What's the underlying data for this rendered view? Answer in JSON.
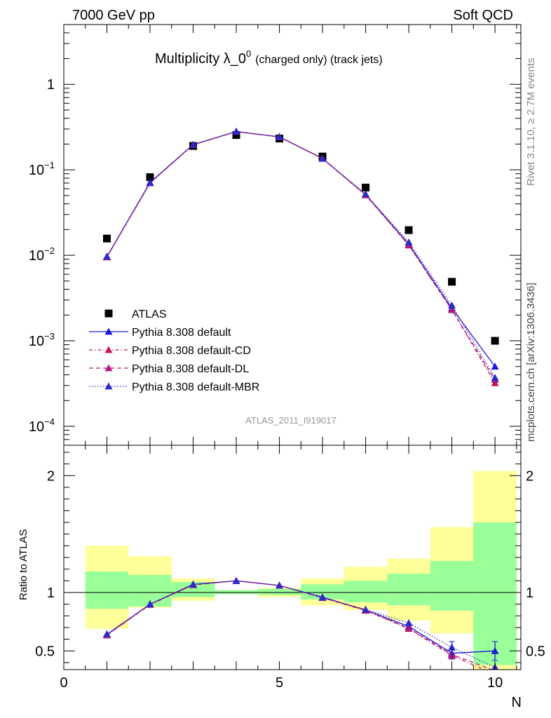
{
  "header": {
    "left": "7000 GeV pp",
    "right": "Soft QCD"
  },
  "chart_data": [
    {
      "type": "line",
      "title_main": "Multiplicity λ_0",
      "title_sup": "0",
      "title_tail": "(charged only) (track jets)",
      "watermark": "ATLAS_2011_I919017",
      "xlabel": "N",
      "ylabel": "",
      "yscale": "log",
      "ylim": [
        6e-05,
        5
      ],
      "y_tick_labels": [
        {
          "base": "10",
          "exp": "−4"
        },
        {
          "base": "10",
          "exp": "−3"
        },
        {
          "base": "10",
          "exp": "−2"
        },
        {
          "base": "10",
          "exp": "−1"
        },
        {
          "base": "1",
          "exp": ""
        }
      ],
      "x": [
        1,
        2,
        3,
        4,
        5,
        6,
        7,
        8,
        9,
        10
      ],
      "series": [
        {
          "name": "ATLAS",
          "marker": "square",
          "color": "#000000",
          "dash": "",
          "values": [
            0.0157,
            0.082,
            0.19,
            0.255,
            0.232,
            0.143,
            0.062,
            0.0197,
            0.0049,
            0.001
          ]
        },
        {
          "name": "Pythia 8.308 default",
          "marker": "triangle",
          "color": "#1a1adb",
          "dash": "",
          "values": [
            0.0096,
            0.071,
            0.197,
            0.28,
            0.243,
            0.136,
            0.0512,
            0.0135,
            0.0024,
            0.0005
          ]
        },
        {
          "name": "Pythia 8.308 default-CD",
          "marker": "triangle",
          "color": "#c8194f",
          "dash": "5,3,1.5,3",
          "values": [
            0.0095,
            0.07,
            0.196,
            0.279,
            0.242,
            0.135,
            0.0505,
            0.0131,
            0.0023,
            0.00032
          ]
        },
        {
          "name": "Pythia 8.308 default-DL",
          "marker": "triangle",
          "color": "#b0187e",
          "dash": "6,4",
          "values": [
            0.0096,
            0.07,
            0.197,
            0.28,
            0.242,
            0.136,
            0.051,
            0.0132,
            0.0023,
            0.00035
          ]
        },
        {
          "name": "Pythia 8.308 default-MBR",
          "marker": "triangle",
          "color": "#2c2ac8",
          "dash": "1.5,2.5",
          "values": [
            0.0097,
            0.0705,
            0.197,
            0.28,
            0.243,
            0.135,
            0.052,
            0.0142,
            0.0026,
            0.00037
          ]
        }
      ]
    },
    {
      "type": "line",
      "xlabel": "N",
      "ylabel": "Ratio to ATLAS",
      "xlim": [
        0,
        10.6
      ],
      "ylim": [
        0.34,
        2.26
      ],
      "x_ticks": [
        0,
        5,
        10
      ],
      "y_ticks": [
        0.5,
        1,
        2
      ],
      "x": [
        1,
        2,
        3,
        4,
        5,
        6,
        7,
        8,
        9,
        10
      ],
      "bands": {
        "bins": [
          [
            0.5,
            1.5
          ],
          [
            1.5,
            2.5
          ],
          [
            2.5,
            3.5
          ],
          [
            3.5,
            4.5
          ],
          [
            4.5,
            5.5
          ],
          [
            5.5,
            6.5
          ],
          [
            6.5,
            7.5
          ],
          [
            7.5,
            8.5
          ],
          [
            8.5,
            9.5
          ],
          [
            9.5,
            10.5
          ]
        ],
        "stat_lo": [
          0.86,
          0.88,
          0.96,
          0.985,
          0.98,
          0.94,
          0.915,
          0.89,
          0.845,
          0.38
        ],
        "stat_hi": [
          1.18,
          1.15,
          1.09,
          1.02,
          1.03,
          1.07,
          1.1,
          1.16,
          1.27,
          1.6
        ],
        "tot_lo": [
          0.69,
          0.87,
          0.93,
          0.985,
          0.96,
          0.89,
          0.85,
          0.76,
          0.65,
          0.34
        ],
        "tot_hi": [
          1.4,
          1.31,
          1.12,
          1.02,
          1.04,
          1.12,
          1.22,
          1.29,
          1.56,
          2.04
        ],
        "stat_color": "#99ff99",
        "tot_color": "#ffff99"
      },
      "series": [
        {
          "name": "Pythia 8.308 default",
          "color": "#1a1adb",
          "dash": "",
          "values": [
            0.64,
            0.9,
            1.07,
            1.1,
            1.06,
            0.96,
            0.85,
            0.71,
            0.48,
            0.5
          ]
        },
        {
          "name": "Pythia 8.308 default-CD",
          "color": "#c8194f",
          "dash": "5,3,1.5,3",
          "values": [
            0.635,
            0.895,
            1.065,
            1.1,
            1.06,
            0.955,
            0.845,
            0.69,
            0.46,
            0.3
          ]
        },
        {
          "name": "Pythia 8.308 default-DL",
          "color": "#b0187e",
          "dash": "6,4",
          "values": [
            0.635,
            0.9,
            1.065,
            1.1,
            1.06,
            0.955,
            0.85,
            0.695,
            0.47,
            0.33
          ]
        },
        {
          "name": "Pythia 8.308 default-MBR",
          "color": "#2c2ac8",
          "dash": "1.5,2.5",
          "values": [
            0.645,
            0.9,
            1.07,
            1.1,
            1.06,
            0.955,
            0.855,
            0.74,
            0.53,
            0.36
          ]
        }
      ]
    }
  ],
  "side_labels": {
    "rivet": "Rivet 3.1.10, ≥ 2.7M events",
    "mcplots": "mcplots.cern.ch [arXiv:1306.3436]"
  }
}
